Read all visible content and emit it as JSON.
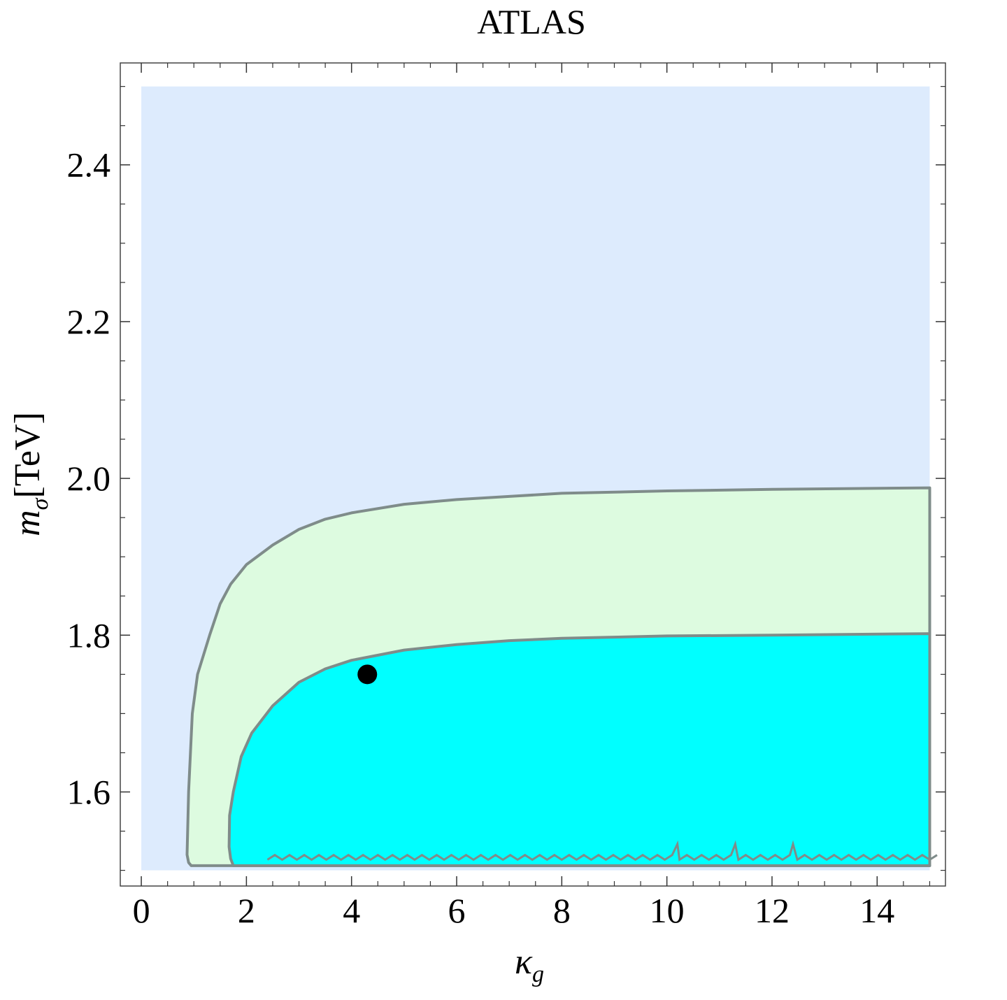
{
  "chart_data": {
    "type": "contour",
    "title": "ATLAS",
    "xlabel": {
      "symbol": "κ",
      "sub": "g"
    },
    "ylabel": {
      "symbol": "m",
      "sub": "σ",
      "unit": "[TeV]"
    },
    "xlim": [
      -0.4,
      15.3
    ],
    "ylim": [
      1.48,
      2.53
    ],
    "x_ticks": [
      0,
      2,
      4,
      6,
      8,
      10,
      12,
      14
    ],
    "y_ticks": [
      1.6,
      1.8,
      2.0,
      2.2,
      2.4
    ],
    "x_tick_labels": [
      "0",
      "2",
      "4",
      "6",
      "8",
      "10",
      "12",
      "14"
    ],
    "y_tick_labels": [
      "1.6",
      "1.8",
      "2.0",
      "2.2",
      "2.4"
    ],
    "grid": false,
    "plot_domain": {
      "x": [
        0,
        15
      ],
      "y": [
        1.5,
        2.5
      ]
    },
    "colors": {
      "background_region": "#ddebfd",
      "outer_region": "#ddfbe0",
      "inner_region": "#00ffff",
      "contour_line": "#7f8c8a",
      "marker": "#000000"
    },
    "regions": [
      {
        "name": "outer",
        "boundary": [
          [
            0.9,
            1.51
          ],
          [
            0.87,
            1.52
          ],
          [
            0.9,
            1.6
          ],
          [
            0.97,
            1.7
          ],
          [
            1.07,
            1.75
          ],
          [
            1.3,
            1.8
          ],
          [
            1.5,
            1.84
          ],
          [
            1.7,
            1.865
          ],
          [
            2.0,
            1.89
          ],
          [
            2.5,
            1.915
          ],
          [
            3.0,
            1.935
          ],
          [
            3.5,
            1.948
          ],
          [
            4.0,
            1.956
          ],
          [
            5.0,
            1.967
          ],
          [
            6.0,
            1.973
          ],
          [
            7.0,
            1.977
          ],
          [
            8.0,
            1.981
          ],
          [
            10.0,
            1.984
          ],
          [
            12.0,
            1.986
          ],
          [
            15.0,
            1.988
          ]
        ]
      },
      {
        "name": "inner",
        "boundary": [
          [
            1.7,
            1.515
          ],
          [
            1.67,
            1.53
          ],
          [
            1.68,
            1.57
          ],
          [
            1.75,
            1.6
          ],
          [
            1.9,
            1.645
          ],
          [
            2.1,
            1.675
          ],
          [
            2.5,
            1.71
          ],
          [
            3.0,
            1.74
          ],
          [
            3.5,
            1.757
          ],
          [
            4.0,
            1.768
          ],
          [
            5.0,
            1.781
          ],
          [
            6.0,
            1.788
          ],
          [
            7.0,
            1.793
          ],
          [
            8.0,
            1.796
          ],
          [
            10.0,
            1.799
          ],
          [
            12.0,
            1.8
          ],
          [
            15.0,
            1.802
          ]
        ]
      }
    ],
    "points": [
      {
        "x": 4.3,
        "y": 1.75
      }
    ]
  }
}
